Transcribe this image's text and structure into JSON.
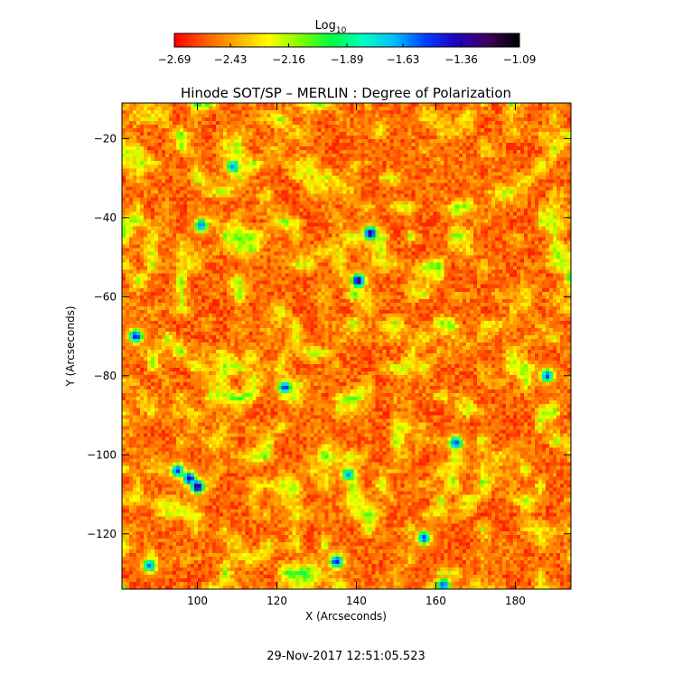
{
  "chart_data": {
    "type": "heatmap",
    "title": "Hinode SOT/SP – MERLIN : Degree of Polarization",
    "xlabel": "X (Arcseconds)",
    "ylabel": "Y (Arcseconds)",
    "xlim": [
      81,
      194
    ],
    "ylim": [
      -134,
      -11
    ],
    "x_ticks": [
      100,
      120,
      140,
      160,
      180
    ],
    "x_tick_labels": [
      "100",
      "120",
      "140",
      "160",
      "180"
    ],
    "y_ticks": [
      -20,
      -40,
      -60,
      -80,
      -100,
      -120
    ],
    "y_tick_labels": [
      "−20",
      "−40",
      "−60",
      "−80",
      "−100",
      "−120"
    ],
    "colorbar": {
      "label_main": "Log",
      "label_sub": "10",
      "min": -2.69,
      "max": -1.09,
      "tick_values": [
        -2.69,
        -2.43,
        -2.16,
        -1.89,
        -1.63,
        -1.36,
        -1.09
      ],
      "tick_labels": [
        "−2.69",
        "−2.43",
        "−2.16",
        "−1.89",
        "−1.63",
        "−1.36",
        "−1.09"
      ],
      "colormap": [
        "#ff0000",
        "#ff6000",
        "#ffb000",
        "#ffff00",
        "#80ff00",
        "#00ff40",
        "#00ffc0",
        "#00c0ff",
        "#0040ff",
        "#2000c0",
        "#400060",
        "#000000"
      ]
    },
    "field_description": "Predominantly low polarization (red/orange, ≈ −2.6 to −2.4) with scattered yellow/green network and isolated dark blue strong-polarization patches",
    "strong_patches": [
      {
        "x": 143.5,
        "y": -44,
        "value": -1.25
      },
      {
        "x": 140.5,
        "y": -56,
        "value": -1.25
      },
      {
        "x": 100,
        "y": -108,
        "value": -1.2
      },
      {
        "x": 98,
        "y": -106,
        "value": -1.3
      },
      {
        "x": 95,
        "y": -104,
        "value": -1.45
      },
      {
        "x": 84.5,
        "y": -70,
        "value": -1.4
      },
      {
        "x": 135,
        "y": -127,
        "value": -1.4
      },
      {
        "x": 122,
        "y": -83,
        "value": -1.45
      },
      {
        "x": 188,
        "y": -80,
        "value": -1.5
      },
      {
        "x": 165,
        "y": -97,
        "value": -1.5
      },
      {
        "x": 157,
        "y": -121,
        "value": -1.5
      },
      {
        "x": 109,
        "y": -27,
        "value": -1.6
      },
      {
        "x": 101,
        "y": -42,
        "value": -1.55
      },
      {
        "x": 162,
        "y": -133,
        "value": -1.5
      },
      {
        "x": 88,
        "y": -128,
        "value": -1.55
      },
      {
        "x": 138,
        "y": -105,
        "value": -1.6
      }
    ]
  },
  "footer": {
    "timestamp": "29-Nov-2017 12:51:05.523"
  }
}
